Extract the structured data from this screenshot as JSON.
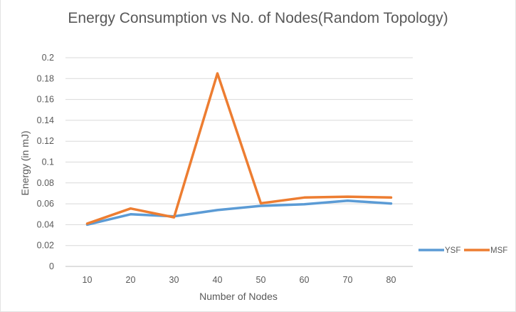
{
  "chart_data": {
    "type": "line",
    "title": "Energy Consumption vs No. of Nodes(Random Topology)",
    "xlabel": "Number of Nodes",
    "ylabel": "Energy (in mJ)",
    "categories": [
      "10",
      "20",
      "30",
      "40",
      "50",
      "60",
      "70",
      "80"
    ],
    "ylim": [
      0,
      0.2
    ],
    "yticks": [
      "0",
      "0.02",
      "0.04",
      "0.06",
      "0.08",
      "0.1",
      "0.12",
      "0.14",
      "0.16",
      "0.18",
      "0.2"
    ],
    "grid": true,
    "legend_position": "right",
    "series": [
      {
        "name": "YSF",
        "color": "#5b9bd5",
        "values": [
          0.04,
          0.05,
          0.048,
          0.054,
          0.058,
          0.0595,
          0.063,
          0.0602
        ]
      },
      {
        "name": "MSF",
        "color": "#ed7d31",
        "values": [
          0.041,
          0.0555,
          0.047,
          0.185,
          0.0605,
          0.066,
          0.0668,
          0.066
        ]
      }
    ]
  }
}
